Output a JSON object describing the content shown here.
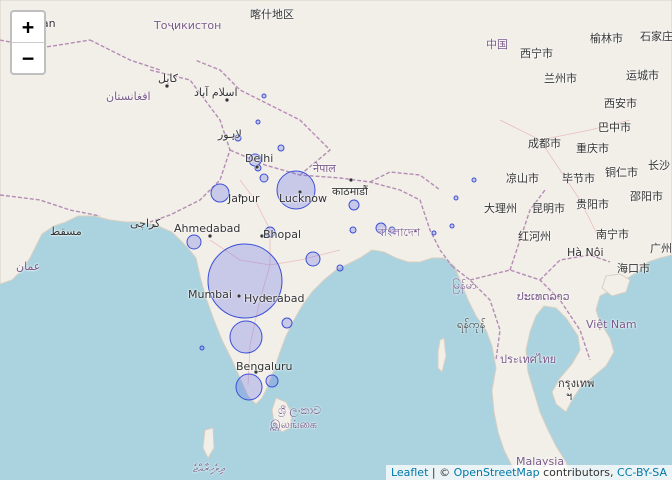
{
  "controls": {
    "zoom_in": "+",
    "zoom_out": "−"
  },
  "attribution": {
    "leaflet": "Leaflet",
    "separator": " | © ",
    "osm": "OpenStreetMap",
    "contributors": " contributors, ",
    "license": "CC-BY-SA"
  },
  "labels": {
    "tajikistan": "Тоҷикистон",
    "kashgar": "喀什地区",
    "china": "中国",
    "xining": "西宁市",
    "yulin": "榆林市",
    "shijiazhuang": "石家庄",
    "lanzhou": "兰州市",
    "yuncheng": "运城市",
    "afghanistan": "افغانستان",
    "kabul": "کابل",
    "islamabad": "اسلام آباد",
    "xian": "西安市",
    "lahore": "لاہور",
    "bazhong": "巴中市",
    "chengdu": "成都市",
    "chongqing": "重庆市",
    "delhi": "Delhi",
    "nepal": "नेपाल",
    "liangshan": "凉山市",
    "bijie": "毕节市",
    "tongren": "铜仁市",
    "changsha": "长沙",
    "jaipur": "Jaipur",
    "lucknow": "Lucknow",
    "kathmandu": "काठमाडौं",
    "dali": "大理州",
    "kunming": "昆明市",
    "guiyang": "贵阳市",
    "shaoyang": "邵阳市",
    "karachi": "کراچی",
    "ahmedabad": "Ahmedabad",
    "bhopal": "Bhopal",
    "bangladesh": "বাংলাদেশ",
    "honghe": "红河州",
    "nanning": "南宁市",
    "hanoi": "Hà Nội",
    "haikou": "海口市",
    "oman": "عمان",
    "muscat": "مسقط",
    "mumbai": "Mumbai",
    "hyderabad": "Hyderabad",
    "myanmar": "မြန်မာ",
    "laos": "ປະເທດລາວ",
    "yangon": "ရန်ကုန်",
    "vietnam": "Việt Nam",
    "thailand": "ประเทศไทย",
    "bengaluru": "Bengaluru",
    "bangkok1": "กรุงเทพ",
    "bangkok2": "ฯ",
    "srilanka1": "ශ්‍රී ලංකාව",
    "srilanka2": "இலங்கை",
    "maldives": "ދިވެހިރާއްޖެ",
    "malaysia": "Malaysia"
  },
  "colors": {
    "sea": "#aad3df",
    "land": "#f2efe9",
    "border": "#b48cb4",
    "circle_stroke": "#3b4fd6",
    "circle_fill": "#6670e8"
  }
}
